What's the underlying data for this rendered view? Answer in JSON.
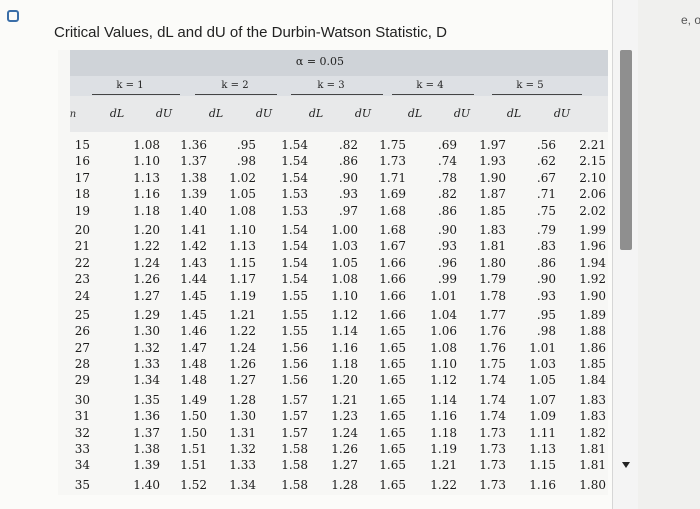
{
  "title": "Critical Values, dL and dU of the Durbin-Watson Statistic, D",
  "alpha": "α = 0.05",
  "k_groups": [
    "k = 1",
    "k = 2",
    "k = 3",
    "k = 4",
    "k = 5"
  ],
  "n_label": "n",
  "col_labels": [
    "dL",
    "dU",
    "dL",
    "dU",
    "dL",
    "dU",
    "dL",
    "dU",
    "dL",
    "dU"
  ],
  "side_text": "e, o",
  "rows": [
    {
      "n": "15",
      "v": [
        "1.08",
        "1.36",
        ".95",
        "1.54",
        ".82",
        "1.75",
        ".69",
        "1.97",
        ".56",
        "2.21"
      ]
    },
    {
      "n": "16",
      "v": [
        "1.10",
        "1.37",
        ".98",
        "1.54",
        ".86",
        "1.73",
        ".74",
        "1.93",
        ".62",
        "2.15"
      ]
    },
    {
      "n": "17",
      "v": [
        "1.13",
        "1.38",
        "1.02",
        "1.54",
        ".90",
        "1.71",
        ".78",
        "1.90",
        ".67",
        "2.10"
      ]
    },
    {
      "n": "18",
      "v": [
        "1.16",
        "1.39",
        "1.05",
        "1.53",
        ".93",
        "1.69",
        ".82",
        "1.87",
        ".71",
        "2.06"
      ]
    },
    {
      "n": "19",
      "v": [
        "1.18",
        "1.40",
        "1.08",
        "1.53",
        ".97",
        "1.68",
        ".86",
        "1.85",
        ".75",
        "2.02"
      ]
    },
    {
      "n": "20",
      "v": [
        "1.20",
        "1.41",
        "1.10",
        "1.54",
        "1.00",
        "1.68",
        ".90",
        "1.83",
        ".79",
        "1.99"
      ]
    },
    {
      "n": "21",
      "v": [
        "1.22",
        "1.42",
        "1.13",
        "1.54",
        "1.03",
        "1.67",
        ".93",
        "1.81",
        ".83",
        "1.96"
      ]
    },
    {
      "n": "22",
      "v": [
        "1.24",
        "1.43",
        "1.15",
        "1.54",
        "1.05",
        "1.66",
        ".96",
        "1.80",
        ".86",
        "1.94"
      ]
    },
    {
      "n": "23",
      "v": [
        "1.26",
        "1.44",
        "1.17",
        "1.54",
        "1.08",
        "1.66",
        ".99",
        "1.79",
        ".90",
        "1.92"
      ]
    },
    {
      "n": "24",
      "v": [
        "1.27",
        "1.45",
        "1.19",
        "1.55",
        "1.10",
        "1.66",
        "1.01",
        "1.78",
        ".93",
        "1.90"
      ]
    },
    {
      "n": "25",
      "v": [
        "1.29",
        "1.45",
        "1.21",
        "1.55",
        "1.12",
        "1.66",
        "1.04",
        "1.77",
        ".95",
        "1.89"
      ]
    },
    {
      "n": "26",
      "v": [
        "1.30",
        "1.46",
        "1.22",
        "1.55",
        "1.14",
        "1.65",
        "1.06",
        "1.76",
        ".98",
        "1.88"
      ]
    },
    {
      "n": "27",
      "v": [
        "1.32",
        "1.47",
        "1.24",
        "1.56",
        "1.16",
        "1.65",
        "1.08",
        "1.76",
        "1.01",
        "1.86"
      ]
    },
    {
      "n": "28",
      "v": [
        "1.33",
        "1.48",
        "1.26",
        "1.56",
        "1.18",
        "1.65",
        "1.10",
        "1.75",
        "1.03",
        "1.85"
      ]
    },
    {
      "n": "29",
      "v": [
        "1.34",
        "1.48",
        "1.27",
        "1.56",
        "1.20",
        "1.65",
        "1.12",
        "1.74",
        "1.05",
        "1.84"
      ]
    },
    {
      "n": "30",
      "v": [
        "1.35",
        "1.49",
        "1.28",
        "1.57",
        "1.21",
        "1.65",
        "1.14",
        "1.74",
        "1.07",
        "1.83"
      ]
    },
    {
      "n": "31",
      "v": [
        "1.36",
        "1.50",
        "1.30",
        "1.57",
        "1.23",
        "1.65",
        "1.16",
        "1.74",
        "1.09",
        "1.83"
      ]
    },
    {
      "n": "32",
      "v": [
        "1.37",
        "1.50",
        "1.31",
        "1.57",
        "1.24",
        "1.65",
        "1.18",
        "1.73",
        "1.11",
        "1.82"
      ]
    },
    {
      "n": "33",
      "v": [
        "1.38",
        "1.51",
        "1.32",
        "1.58",
        "1.26",
        "1.65",
        "1.19",
        "1.73",
        "1.13",
        "1.81"
      ]
    },
    {
      "n": "34",
      "v": [
        "1.39",
        "1.51",
        "1.33",
        "1.58",
        "1.27",
        "1.65",
        "1.21",
        "1.73",
        "1.15",
        "1.81"
      ]
    },
    {
      "n": "35",
      "v": [
        "1.40",
        "1.52",
        "1.34",
        "1.58",
        "1.28",
        "1.65",
        "1.22",
        "1.73",
        "1.16",
        "1.80"
      ]
    }
  ]
}
